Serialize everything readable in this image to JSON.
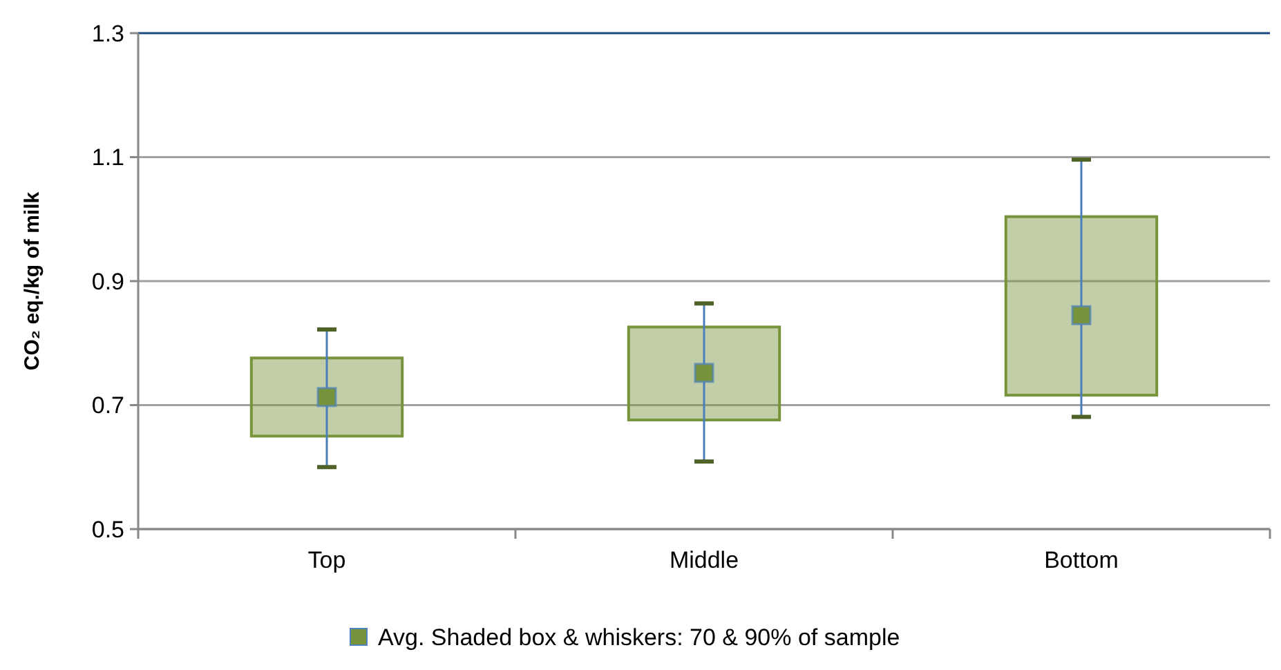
{
  "chart_data": {
    "type": "box",
    "ylabel": "CO₂ eq./kg of milk",
    "categories": [
      "Top",
      "Middle",
      "Bottom"
    ],
    "ylim": [
      0.5,
      1.3
    ],
    "yticks": [
      0.5,
      0.7,
      0.9,
      1.1,
      1.3
    ],
    "grid": "y",
    "legend": "bottom",
    "marker": "square",
    "series": [
      {
        "name": "Avg. Shaded box & whiskers: 70 & 90% of sample",
        "color": "#77933c",
        "boxes": [
          {
            "low": 0.6,
            "q1": 0.65,
            "q3": 0.776,
            "high": 0.822,
            "mean": 0.713
          },
          {
            "low": 0.609,
            "q1": 0.676,
            "q3": 0.826,
            "high": 0.864,
            "mean": 0.752
          },
          {
            "low": 0.681,
            "q1": 0.716,
            "q3": 1.004,
            "high": 1.096,
            "mean": 0.845
          }
        ]
      }
    ]
  }
}
